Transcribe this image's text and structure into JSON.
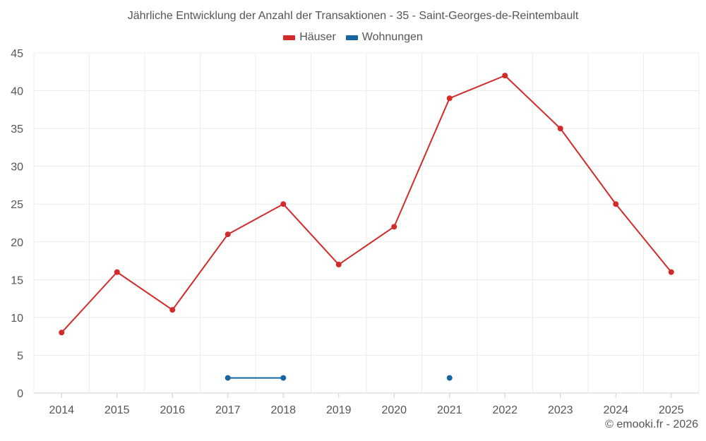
{
  "chart_data": {
    "type": "line",
    "title": "Jährliche Entwicklung der Anzahl der Transaktionen - 35 - Saint-Georges-de-Reintembault",
    "xlabel": "",
    "ylabel": "",
    "categories": [
      "2014",
      "2015",
      "2016",
      "2017",
      "2018",
      "2019",
      "2020",
      "2021",
      "2022",
      "2023",
      "2024",
      "2025"
    ],
    "yticks": [
      "0",
      "5",
      "10",
      "15",
      "20",
      "25",
      "30",
      "35",
      "40",
      "45"
    ],
    "ylim": [
      0,
      45
    ],
    "grid": true,
    "legend_position": "top-center",
    "series": [
      {
        "name": "Häuser",
        "color": "#d32a2a",
        "values": [
          8,
          16,
          11,
          21,
          25,
          17,
          22,
          39,
          42,
          35,
          25,
          16
        ]
      },
      {
        "name": "Wohnungen",
        "color": "#1565a0",
        "values": [
          null,
          null,
          null,
          2,
          2,
          null,
          null,
          2,
          null,
          null,
          null,
          null
        ]
      }
    ]
  },
  "credit": "© emooki.fr - 2026"
}
